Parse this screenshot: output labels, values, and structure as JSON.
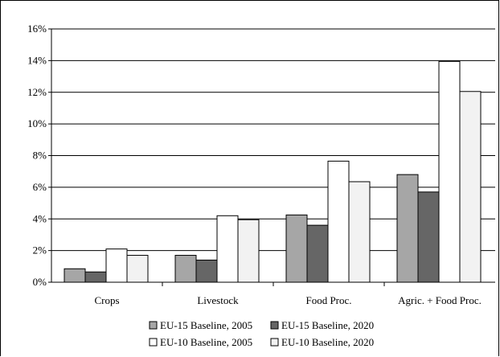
{
  "chart_data": {
    "type": "bar",
    "categories": [
      "Crops",
      "Livestock",
      "Food Proc.",
      "Agric. + Food Proc."
    ],
    "series": [
      {
        "name": "EU-15 Baseline, 2005",
        "values": [
          0.85,
          1.7,
          4.25,
          6.8
        ],
        "color": "#a6a6a6"
      },
      {
        "name": "EU-15 Baseline, 2020",
        "values": [
          0.65,
          1.4,
          3.6,
          5.7
        ],
        "color": "#666666"
      },
      {
        "name": "EU-10 Baseline, 2005",
        "values": [
          2.1,
          4.2,
          7.65,
          13.95
        ],
        "color": "#ffffff"
      },
      {
        "name": "EU-10 Baseline, 2020",
        "values": [
          1.7,
          3.95,
          6.35,
          12.05
        ],
        "color": "#f2f2f2"
      }
    ],
    "ylim": [
      0,
      16
    ],
    "yticks": [
      0,
      2,
      4,
      6,
      8,
      10,
      12,
      14,
      16
    ],
    "ytick_labels": [
      "0%",
      "2%",
      "4%",
      "6%",
      "8%",
      "10%",
      "12%",
      "14%",
      "16%"
    ],
    "grid": true,
    "legend_position": "bottom"
  }
}
